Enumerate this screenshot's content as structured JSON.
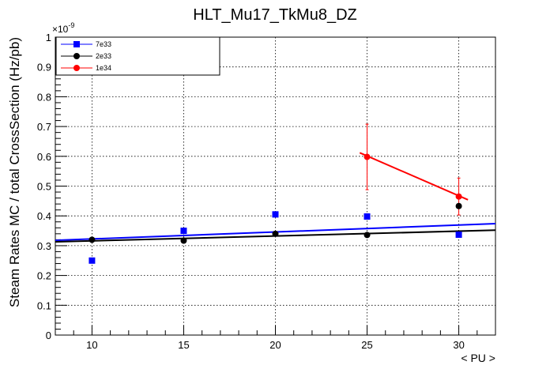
{
  "chart_data": {
    "type": "scatter",
    "title": "HLT_Mu17_TkMu8_DZ",
    "xlabel": "< PU >",
    "ylabel": "Steam Rates MC / total CrossSection (Hz/pb)",
    "y_exponent_label": "×10",
    "y_exponent_power": "-9",
    "xlim": [
      8,
      32
    ],
    "ylim": [
      0,
      1
    ],
    "x_ticks": [
      10,
      15,
      20,
      25,
      30
    ],
    "x_tick_labels": [
      "10",
      "15",
      "20",
      "25",
      "30"
    ],
    "y_ticks": [
      0,
      0.1,
      0.2,
      0.3,
      0.4,
      0.5,
      0.6,
      0.7,
      0.8,
      0.9,
      1
    ],
    "y_tick_labels": [
      "0",
      "0.1",
      "0.2",
      "0.3",
      "0.4",
      "0.5",
      "0.6",
      "0.7",
      "0.8",
      "0.9",
      "1"
    ],
    "grid": true,
    "legend_position": "top-left",
    "series": [
      {
        "name": "7e33",
        "color": "#0000ff",
        "marker": "square",
        "points": [
          {
            "x": 10,
            "y": 0.25
          },
          {
            "x": 15,
            "y": 0.35
          },
          {
            "x": 20,
            "y": 0.405
          },
          {
            "x": 25,
            "y": 0.398
          },
          {
            "x": 30,
            "y": 0.337
          }
        ],
        "fit": {
          "x": [
            8,
            32
          ],
          "y": [
            0.318,
            0.374
          ]
        }
      },
      {
        "name": "2e33",
        "color": "#000000",
        "marker": "circle",
        "points": [
          {
            "x": 10,
            "y": 0.32
          },
          {
            "x": 15,
            "y": 0.317
          },
          {
            "x": 20,
            "y": 0.34
          },
          {
            "x": 25,
            "y": 0.336
          },
          {
            "x": 30,
            "y": 0.433
          }
        ],
        "fit": {
          "x": [
            8,
            32
          ],
          "y": [
            0.313,
            0.352
          ]
        }
      },
      {
        "name": "1e34",
        "color": "#ff0000",
        "marker": "circle",
        "points": [
          {
            "x": 25,
            "y": 0.598,
            "err": 0.11
          },
          {
            "x": 30,
            "y": 0.465,
            "err": 0.062
          }
        ],
        "fit": {
          "x": [
            24.6,
            30.5
          ],
          "y": [
            0.612,
            0.454
          ]
        }
      }
    ]
  }
}
